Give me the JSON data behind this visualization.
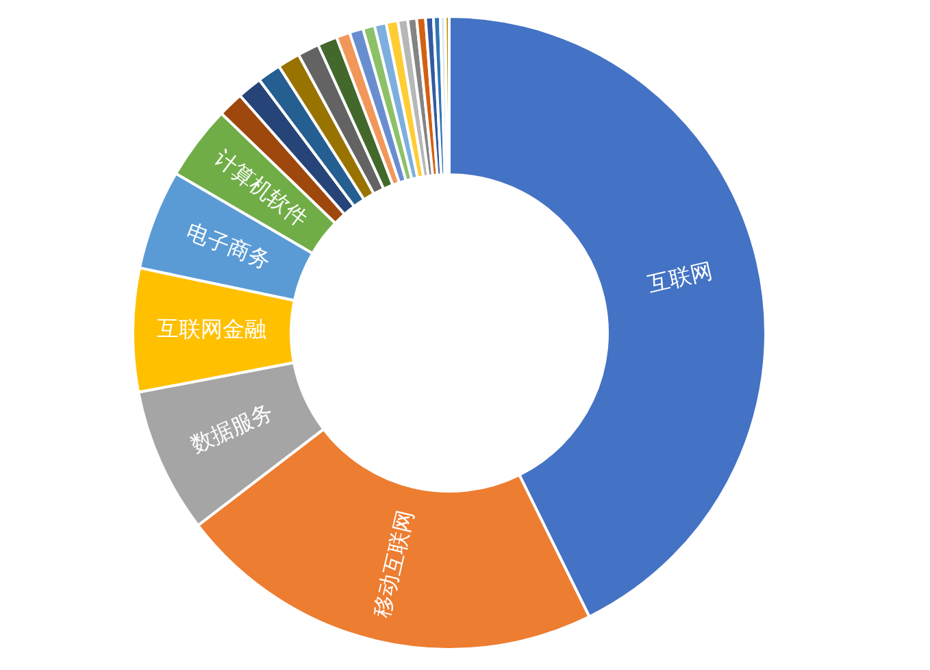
{
  "chart_data": {
    "type": "donut",
    "categories": [
      "互联网",
      "移动互联网",
      "数据服务",
      "互联网金融",
      "电子商务",
      "计算机软件",
      null,
      null,
      null,
      null,
      null,
      null,
      null,
      null,
      null,
      null,
      null,
      null,
      null,
      null,
      null,
      null,
      null,
      null
    ],
    "values": [
      42.7,
      21.9,
      7.4,
      6.3,
      5.1,
      3.8,
      1.3,
      1.25,
      1.2,
      1.15,
      1.1,
      1.0,
      0.7,
      0.7,
      0.6,
      0.6,
      0.6,
      0.5,
      0.45,
      0.45,
      0.4,
      0.35,
      0.25,
      0.2
    ],
    "colors": [
      "#4472c4",
      "#ed7d31",
      "#a5a5a5",
      "#ffc000",
      "#5b9bd5",
      "#70ad47",
      "#9e480e",
      "#264478",
      "#255e91",
      "#997300",
      "#636363",
      "#43682b",
      "#f1975a",
      "#698ed0",
      "#8cc168",
      "#7cafdd",
      "#ffcd33",
      "#b7b7b7",
      "#848484",
      "#d26012",
      "#335aa1",
      "#2e75b6",
      "#dce6f2",
      "#bf9000"
    ],
    "legend": false
  }
}
